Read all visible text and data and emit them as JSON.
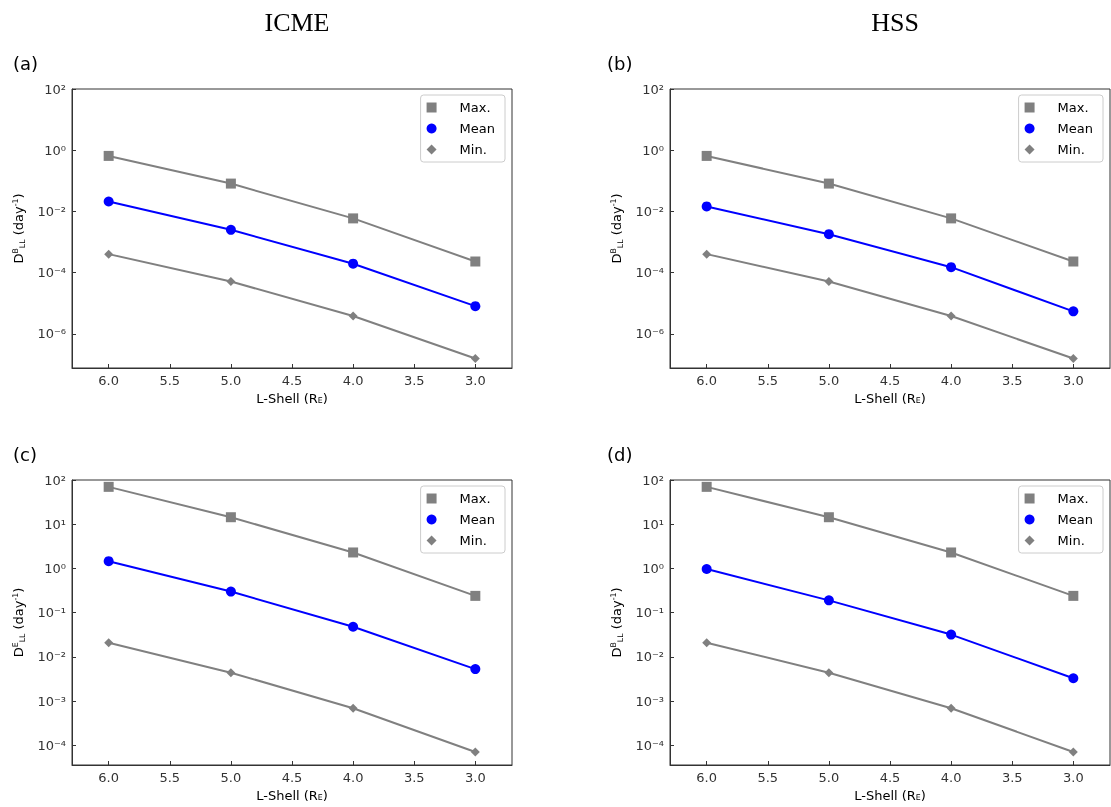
{
  "chart_data": [
    {
      "type": "line",
      "title": "ICME",
      "subtitle": "(a)",
      "xlabel": "L-Shell (R$_{E}$)",
      "ylabel": "D$^{B}$$_{LL}$ (day$^{-1}$)",
      "x": [
        6,
        5,
        4,
        3
      ],
      "log": "y",
      "grid": false,
      "legend": "top right",
      "line_style": "solid",
      "xlim": [
        6.3,
        2.7
      ],
      "xticks": [
        {
          "value": 6,
          "label": "6.0"
        },
        {
          "value": 5.5,
          "label": "5.5"
        },
        {
          "value": 5,
          "label": "5.0"
        },
        {
          "value": 4.5,
          "label": "4.5"
        },
        {
          "value": 4,
          "label": "4.0"
        },
        {
          "value": 3.5,
          "label": "3.5"
        },
        {
          "value": 3,
          "label": "3.0"
        }
      ],
      "ylim": [
        7.6e-08,
        100
      ],
      "yticks": [
        {
          "value": 1e-06,
          "label": "10⁻⁶"
        },
        {
          "value": 0.0001,
          "label": "10⁻⁴"
        },
        {
          "value": 0.01,
          "label": "10⁻²"
        },
        {
          "value": 1,
          "label": "10⁰"
        },
        {
          "value": 100,
          "label": "10²"
        }
      ],
      "series": [
        {
          "name": "Max.",
          "color": "#808080",
          "marker": "square",
          "values": [
            0.65,
            0.081,
            0.0059,
            0.00023
          ]
        },
        {
          "name": "Mean",
          "color": "#0000ff",
          "marker": "circle",
          "values": [
            0.021,
            0.0025,
            0.000195,
            8e-06
          ]
        },
        {
          "name": "Min.",
          "color": "#808080",
          "marker": "diamond",
          "values": [
            0.0004,
            5.1e-05,
            3.8e-06,
            1.55e-07
          ]
        }
      ]
    },
    {
      "type": "line",
      "title": "HSS",
      "subtitle": "(b)",
      "xlabel": "L-Shell (R$_{E}$)",
      "ylabel": "D$^{B}$$_{LL}$ (day$^{-1}$)",
      "x": [
        6,
        5,
        4,
        3
      ],
      "log": "y",
      "grid": false,
      "legend": "top right",
      "line_style": "solid",
      "xlim": [
        6.3,
        2.7
      ],
      "xticks": [
        {
          "value": 6,
          "label": "6.0"
        },
        {
          "value": 5.5,
          "label": "5.5"
        },
        {
          "value": 5,
          "label": "5.0"
        },
        {
          "value": 4.5,
          "label": "4.5"
        },
        {
          "value": 4,
          "label": "4.0"
        },
        {
          "value": 3.5,
          "label": "3.5"
        },
        {
          "value": 3,
          "label": "3.0"
        }
      ],
      "ylim": [
        7.6e-08,
        100
      ],
      "yticks": [
        {
          "value": 1e-06,
          "label": "10⁻⁶"
        },
        {
          "value": 0.0001,
          "label": "10⁻⁴"
        },
        {
          "value": 0.01,
          "label": "10⁻²"
        },
        {
          "value": 1,
          "label": "10⁰"
        },
        {
          "value": 100,
          "label": "10²"
        }
      ],
      "series": [
        {
          "name": "Max.",
          "color": "#808080",
          "marker": "square",
          "values": [
            0.65,
            0.081,
            0.0059,
            0.00023
          ]
        },
        {
          "name": "Mean",
          "color": "#0000ff",
          "marker": "circle",
          "values": [
            0.0145,
            0.0018,
            0.00015,
            5.4e-06
          ]
        },
        {
          "name": "Min.",
          "color": "#808080",
          "marker": "diamond",
          "values": [
            0.0004,
            5.1e-05,
            3.8e-06,
            1.55e-07
          ]
        }
      ]
    },
    {
      "type": "line",
      "subtitle": "(c)",
      "xlabel": "L-Shell (R$_{E}$)",
      "ylabel": "D$^{E}$$_{LL}$ (day$^{-1}$)",
      "x": [
        6,
        5,
        4,
        3
      ],
      "log": "y",
      "grid": false,
      "legend": "top right",
      "line_style": "solid",
      "xlim": [
        6.3,
        2.7
      ],
      "xticks": [
        {
          "value": 6,
          "label": "6.0"
        },
        {
          "value": 5.5,
          "label": "5.5"
        },
        {
          "value": 5,
          "label": "5.0"
        },
        {
          "value": 4.5,
          "label": "4.5"
        },
        {
          "value": 4,
          "label": "4.0"
        },
        {
          "value": 3.5,
          "label": "3.5"
        },
        {
          "value": 3,
          "label": "3.0"
        }
      ],
      "ylim": [
        3.6e-05,
        100
      ],
      "yticks": [
        {
          "value": 0.0001,
          "label": "10⁻⁴"
        },
        {
          "value": 0.001,
          "label": "10⁻³"
        },
        {
          "value": 0.01,
          "label": "10⁻²"
        },
        {
          "value": 0.1,
          "label": "10⁻¹"
        },
        {
          "value": 1,
          "label": "10⁰"
        },
        {
          "value": 10,
          "label": "10¹"
        },
        {
          "value": 100,
          "label": "10²"
        }
      ],
      "series": [
        {
          "name": "Max.",
          "color": "#808080",
          "marker": "square",
          "values": [
            70,
            14.4,
            2.3,
            0.24
          ]
        },
        {
          "name": "Mean",
          "color": "#0000ff",
          "marker": "circle",
          "values": [
            1.46,
            0.3,
            0.048,
            0.0053
          ]
        },
        {
          "name": "Min.",
          "color": "#808080",
          "marker": "diamond",
          "values": [
            0.021,
            0.0044,
            0.00069,
            7.1e-05
          ]
        }
      ]
    },
    {
      "type": "line",
      "subtitle": "(d)",
      "xlabel": "L-Shell (R$_{E}$)",
      "ylabel": "D$^{B}$$_{LL}$ (day$^{-1}$)",
      "x": [
        6,
        5,
        4,
        3
      ],
      "log": "y",
      "grid": false,
      "legend": "top right",
      "line_style": "solid",
      "xlim": [
        6.3,
        2.7
      ],
      "xticks": [
        {
          "value": 6,
          "label": "6.0"
        },
        {
          "value": 5.5,
          "label": "5.5"
        },
        {
          "value": 5,
          "label": "5.0"
        },
        {
          "value": 4.5,
          "label": "4.5"
        },
        {
          "value": 4,
          "label": "4.0"
        },
        {
          "value": 3.5,
          "label": "3.5"
        },
        {
          "value": 3,
          "label": "3.0"
        }
      ],
      "ylim": [
        3.6e-05,
        100
      ],
      "yticks": [
        {
          "value": 0.0001,
          "label": "10⁻⁴"
        },
        {
          "value": 0.001,
          "label": "10⁻³"
        },
        {
          "value": 0.01,
          "label": "10⁻²"
        },
        {
          "value": 0.1,
          "label": "10⁻¹"
        },
        {
          "value": 1,
          "label": "10⁰"
        },
        {
          "value": 10,
          "label": "10¹"
        },
        {
          "value": 100,
          "label": "10²"
        }
      ],
      "series": [
        {
          "name": "Max.",
          "color": "#808080",
          "marker": "square",
          "values": [
            70,
            14.4,
            2.3,
            0.24
          ]
        },
        {
          "name": "Mean",
          "color": "#0000ff",
          "marker": "circle",
          "values": [
            0.97,
            0.19,
            0.032,
            0.0033
          ]
        },
        {
          "name": "Min.",
          "color": "#808080",
          "marker": "diamond",
          "values": [
            0.021,
            0.0044,
            0.00069,
            7.1e-05
          ]
        }
      ]
    }
  ]
}
